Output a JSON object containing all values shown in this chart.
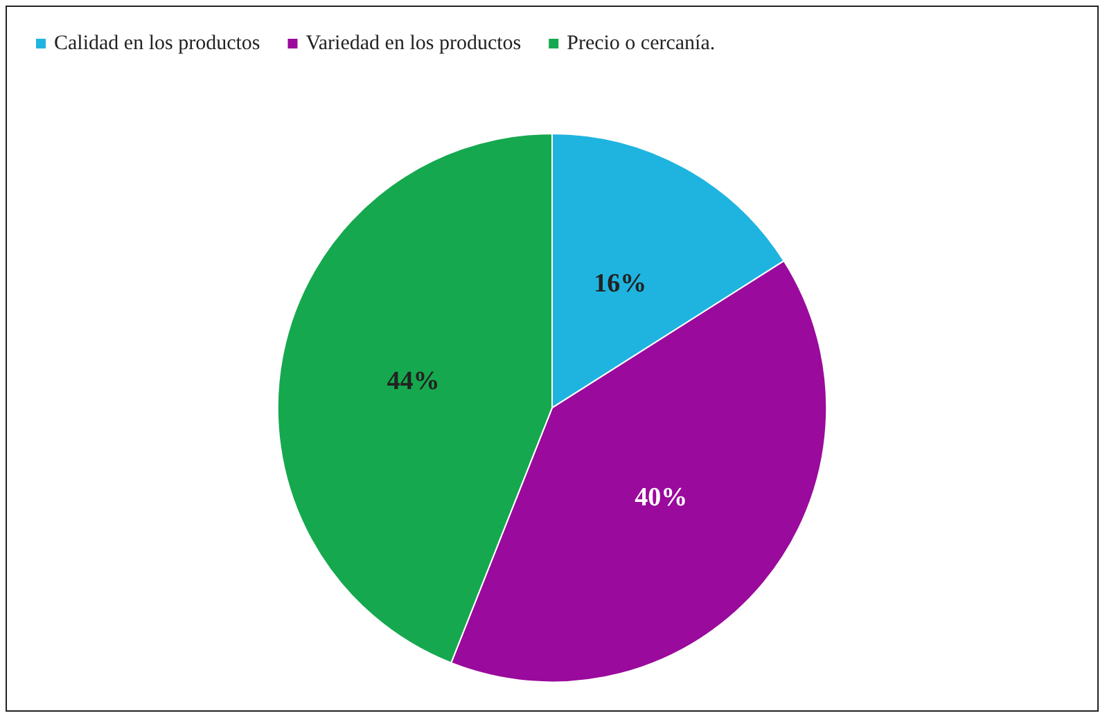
{
  "chart_data": {
    "type": "pie",
    "categories": [
      "Calidad en los productos",
      "Variedad en los productos",
      "Precio o cercanía."
    ],
    "values": [
      16,
      40,
      44
    ],
    "colors": [
      "#1fb4e0",
      "#9a0a9c",
      "#16a84e"
    ],
    "value_labels": [
      "16%",
      "40%",
      "44%"
    ],
    "legend": "top left"
  }
}
